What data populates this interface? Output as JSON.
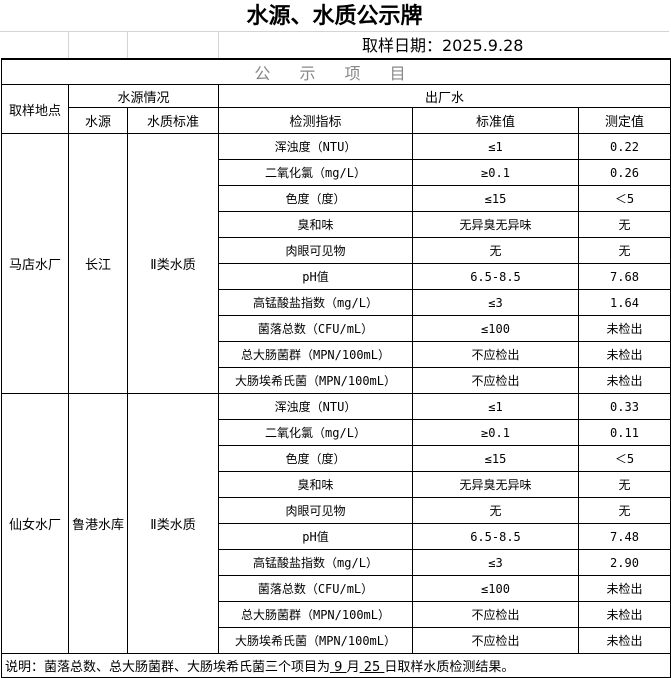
{
  "title": "水源、水质公示牌",
  "date_label": "取样日期：2025.9.28",
  "section_title": "公 示 项 目",
  "headers": {
    "site": "取样地点",
    "source_info": "水源情况",
    "outlet": "出厂水",
    "source": "水源",
    "quality_std": "水质标准",
    "indicator": "检测指标",
    "standard": "标准值",
    "measured": "测定值"
  },
  "sites": [
    {
      "name": "马店水厂",
      "source": "长江",
      "quality": "Ⅱ类水质",
      "rows": [
        [
          "浑浊度（NTU）",
          "≤1",
          "0.22"
        ],
        [
          "二氧化氯（mg/L）",
          "≥0.1",
          "0.26"
        ],
        [
          "色度（度）",
          "≤15",
          "＜5"
        ],
        [
          "臭和味",
          "无异臭无异味",
          "无"
        ],
        [
          "肉眼可见物",
          "无",
          "无"
        ],
        [
          "pH值",
          "6.5-8.5",
          "7.68"
        ],
        [
          "高锰酸盐指数（mg/L）",
          "≤3",
          "1.64"
        ],
        [
          "菌落总数（CFU/mL）",
          "≤100",
          "未检出"
        ],
        [
          "总大肠菌群（MPN/100mL）",
          "不应检出",
          "未检出"
        ],
        [
          "大肠埃希氏菌（MPN/100mL）",
          "不应检出",
          "未检出"
        ]
      ]
    },
    {
      "name": "仙女水厂",
      "source": "鲁港水库",
      "quality": "Ⅱ类水质",
      "rows": [
        [
          "浑浊度（NTU）",
          "≤1",
          "0.33"
        ],
        [
          "二氧化氯（mg/L）",
          "≥0.1",
          "0.11"
        ],
        [
          "色度（度）",
          "≤15",
          "＜5"
        ],
        [
          "臭和味",
          "无异臭无异味",
          "无"
        ],
        [
          "肉眼可见物",
          "无",
          "无"
        ],
        [
          "pH值",
          "6.5-8.5",
          "7.48"
        ],
        [
          "高锰酸盐指数（mg/L）",
          "≤3",
          "2.90"
        ],
        [
          "菌落总数（CFU/mL）",
          "≤100",
          "未检出"
        ],
        [
          "总大肠菌群（MPN/100mL）",
          "不应检出",
          "未检出"
        ],
        [
          "大肠埃希氏菌（MPN/100mL）",
          "不应检出",
          "未检出"
        ]
      ]
    }
  ],
  "note": {
    "prefix": "说明：菌落总数、总大肠菌群、大肠埃希氏菌三个项目为",
    "month": "9",
    "month_unit": "月",
    "day": "25",
    "suffix": "日取样水质检测结果。"
  }
}
